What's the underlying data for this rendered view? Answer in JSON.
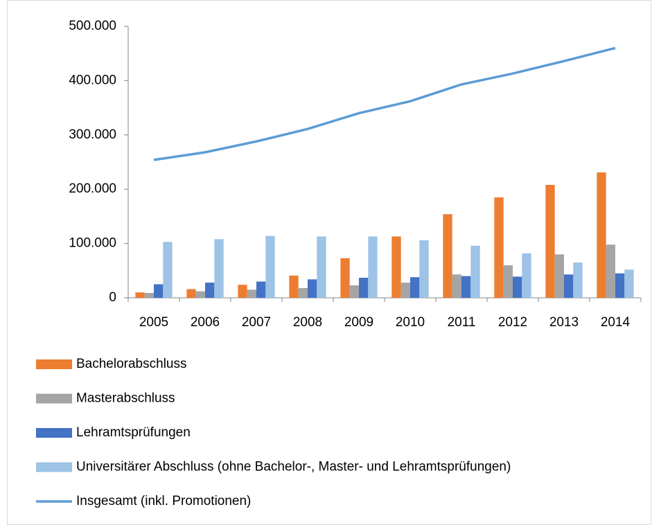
{
  "chart_data": {
    "type": "bar",
    "categories": [
      "2005",
      "2006",
      "2007",
      "2008",
      "2009",
      "2010",
      "2011",
      "2012",
      "2013",
      "2014"
    ],
    "series": [
      {
        "name": "Bachelorabschluss",
        "color": "#ed7d31",
        "values": [
          10000,
          16000,
          24000,
          41000,
          73000,
          113000,
          154000,
          185000,
          208000,
          231000
        ]
      },
      {
        "name": "Masterabschluss",
        "color": "#a5a5a5",
        "values": [
          9000,
          12000,
          15000,
          18000,
          23000,
          28000,
          43000,
          60000,
          80000,
          98000
        ]
      },
      {
        "name": "Lehramtsprüfungen",
        "color": "#4472c4",
        "values": [
          25000,
          28000,
          30000,
          34000,
          37000,
          38000,
          40000,
          39000,
          43000,
          45000
        ]
      },
      {
        "name": "Universitärer Abschluss (ohne Bachelor-, Master- und Lehramtsprüfungen)",
        "color": "#9dc3e6",
        "values": [
          103000,
          108000,
          114000,
          113000,
          113000,
          106000,
          96000,
          82000,
          65000,
          52000
        ]
      },
      {
        "name": "Insgesamt (inkl. Promotionen)",
        "color": "#5b9bd5",
        "type": "line",
        "values": [
          254000,
          268000,
          288000,
          311000,
          340000,
          362000,
          393000,
          413000,
          436000,
          460000
        ]
      }
    ],
    "ylim": [
      0,
      500000
    ],
    "yticks": [
      0,
      {
        "value": 100000,
        "label": "100.000"
      },
      {
        "value": 200000,
        "label": "200.000"
      },
      {
        "value": 300000,
        "label": "300.000"
      },
      {
        "value": 400000,
        "label": "400.000"
      },
      {
        "value": 500000,
        "label": "500.000"
      }
    ],
    "grid": false,
    "legend": "bottom"
  }
}
